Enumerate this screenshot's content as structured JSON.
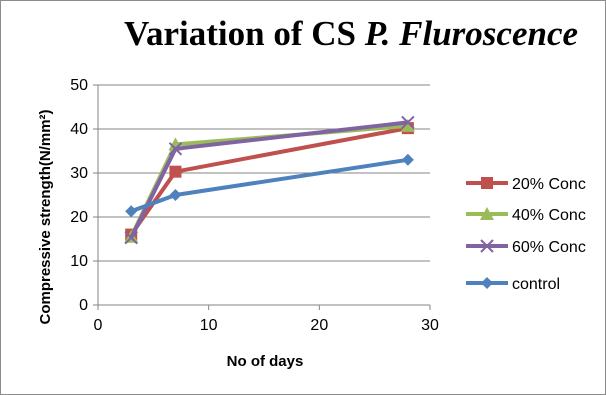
{
  "chart_data": {
    "type": "line",
    "title": {
      "plain": "Variation of CS ",
      "italic": "P. Fluroscence"
    },
    "xlabel": "No of days",
    "ylabel": "Compressive strength(N/mm²)",
    "xlim": [
      0,
      30
    ],
    "ylim": [
      0,
      50
    ],
    "xticks": [
      0,
      10,
      20,
      30
    ],
    "yticks": [
      0,
      10,
      20,
      30,
      40,
      50
    ],
    "grid": "horizontal",
    "legend_position": "right",
    "series": [
      {
        "name": "20% Conc",
        "color": "#c0504d",
        "marker": "square",
        "points": [
          [
            3,
            16
          ],
          [
            7,
            30.3
          ],
          [
            28,
            40.2
          ]
        ]
      },
      {
        "name": "40% Conc",
        "color": "#9bbb59",
        "marker": "triangle",
        "points": [
          [
            3,
            15.5
          ],
          [
            7,
            36.5
          ],
          [
            28,
            40.7
          ]
        ]
      },
      {
        "name": "60% Conc",
        "color": "#8064a2",
        "marker": "x",
        "points": [
          [
            3,
            15.3
          ],
          [
            7,
            35.5
          ],
          [
            28,
            41.5
          ]
        ]
      },
      {
        "name": "control",
        "color": "#4f81bd",
        "marker": "diamond",
        "points": [
          [
            3,
            21.3
          ],
          [
            7,
            25
          ],
          [
            28,
            33
          ]
        ]
      }
    ]
  }
}
